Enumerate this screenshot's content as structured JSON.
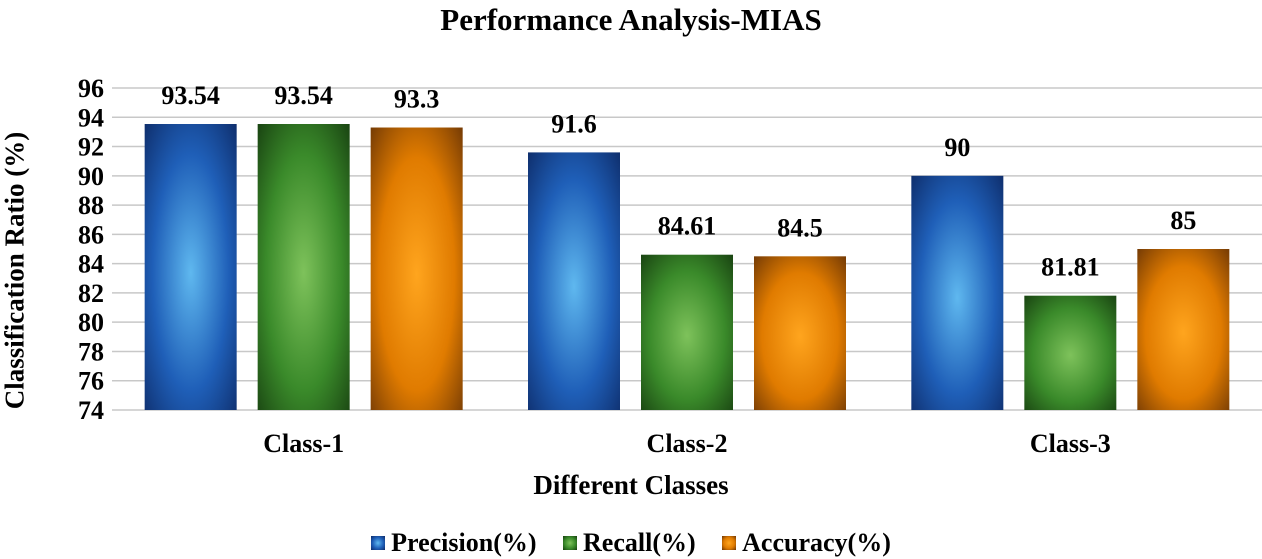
{
  "chart_data": {
    "type": "bar",
    "title": "Performance Analysis-MIAS",
    "xlabel": "Different Classes",
    "ylabel": "Classification Ratio (%)",
    "categories": [
      "Class-1",
      "Class-2",
      "Class-3"
    ],
    "series": [
      {
        "name": "Precision(%)",
        "values": [
          93.54,
          91.6,
          90
        ],
        "labels": [
          "93.54",
          "91.6",
          "90"
        ],
        "color": "#1f5fb8",
        "dark": "#0d2a66",
        "light": "#5fb8ef"
      },
      {
        "name": "Recall(%)",
        "values": [
          93.54,
          84.61,
          81.81
        ],
        "labels": [
          "93.54",
          "84.61",
          "81.81"
        ],
        "color": "#3a8a2a",
        "dark": "#163d0f",
        "light": "#7ec25b"
      },
      {
        "name": "Accuracy(%)",
        "values": [
          93.3,
          84.5,
          85
        ],
        "labels": [
          "93.3",
          "84.5",
          "85"
        ],
        "color": "#e07b00",
        "dark": "#6b3505",
        "light": "#ffa51e"
      }
    ],
    "ylim": [
      74,
      96
    ],
    "yticks": [
      74,
      76,
      78,
      80,
      82,
      84,
      86,
      88,
      90,
      92,
      94,
      96
    ],
    "grid": true,
    "legend_position": "bottom"
  }
}
